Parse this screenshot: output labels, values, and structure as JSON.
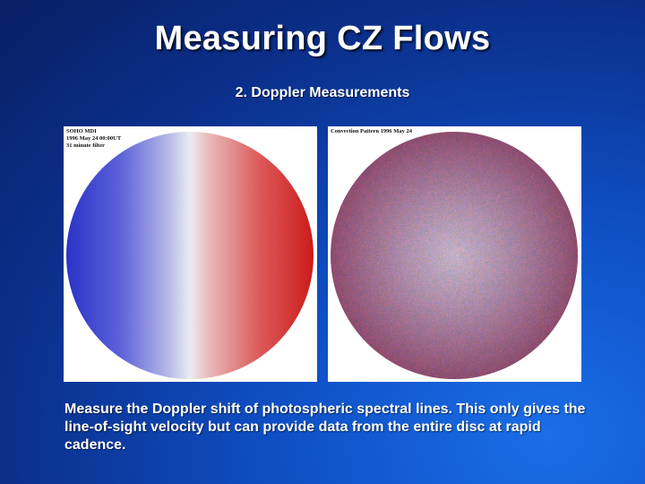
{
  "slide": {
    "title": "Measuring CZ Flows",
    "subtitle": "2. Doppler Measurements",
    "body": "Measure the Doppler shift of photospheric spectral lines. This only gives the line-of-sight velocity but can provide data from the entire disc at rapid cadence."
  },
  "images": {
    "left": {
      "caption_lines": [
        "SOHO MDI",
        "1996 May 24 00:00UT",
        "31 minute filter"
      ],
      "description": "doppler-velocity-disc"
    },
    "right": {
      "caption_lines": [
        "Convection Pattern 1996 May 24"
      ],
      "description": "convection-pattern-disc"
    }
  },
  "colors": {
    "background": "#0f4fc4",
    "approaching": "#2a3fd0",
    "receding": "#d42020"
  }
}
